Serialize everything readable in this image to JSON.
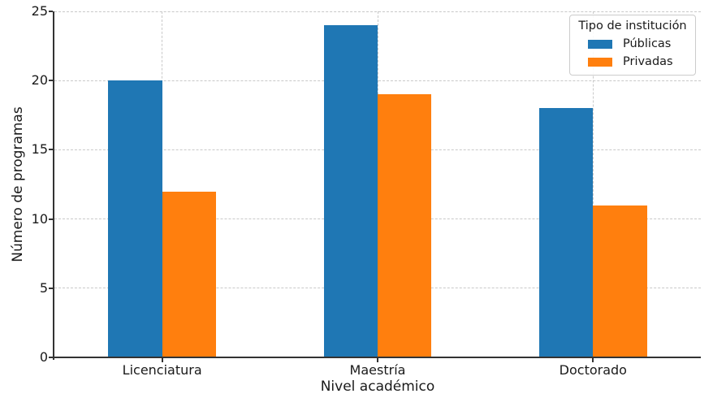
{
  "chart_data": {
    "type": "bar",
    "categories": [
      "Licenciatura",
      "Maestría",
      "Doctorado"
    ],
    "series": [
      {
        "name": "Públicas",
        "color": "#1f77b4",
        "values": [
          20,
          24,
          18
        ]
      },
      {
        "name": "Privadas",
        "color": "#ff7f0e",
        "values": [
          12,
          19,
          11
        ]
      }
    ],
    "xlabel": "Nivel académico",
    "ylabel": "Número de programas",
    "ylim": [
      0,
      25
    ],
    "yticks": [
      0,
      5,
      10,
      15,
      20,
      25
    ],
    "grid": "dashed, both axes",
    "legend": {
      "title": "Tipo de institución",
      "position": "upper right"
    },
    "colors": {
      "grid": "#c9c9c9",
      "spine": "#333333",
      "text": "#1a1a1a",
      "background": "#ffffff"
    }
  }
}
